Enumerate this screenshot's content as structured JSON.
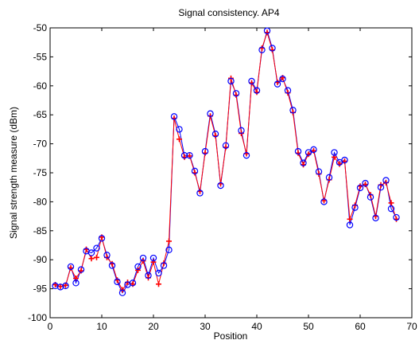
{
  "chart_data": {
    "type": "line",
    "title": "Signal consistency. AP4",
    "xlabel": "Position",
    "ylabel": "Signal strength measure (dBm)",
    "xlim": [
      0,
      70
    ],
    "ylim": [
      -100,
      -50
    ],
    "xticks": [
      0,
      10,
      20,
      30,
      40,
      50,
      60,
      70
    ],
    "yticks": [
      -100,
      -95,
      -90,
      -85,
      -80,
      -75,
      -70,
      -65,
      -60,
      -55,
      -50
    ],
    "grid": false,
    "colors": {
      "series_a": "#0000ff",
      "series_b": "#ff0000"
    },
    "series": [
      {
        "marker": "circle",
        "color": "#0000ff",
        "x": [
          1,
          2,
          3,
          4,
          5,
          6,
          7,
          8,
          9,
          10,
          11,
          12,
          13,
          14,
          15,
          16,
          17,
          18,
          19,
          20,
          21,
          22,
          23,
          24,
          25,
          26,
          27,
          28,
          29,
          30,
          31,
          32,
          33,
          34,
          35,
          36,
          37,
          38,
          39,
          40,
          41,
          42,
          43,
          44,
          45,
          46,
          47,
          48,
          49,
          50,
          51,
          52,
          53,
          54,
          55,
          56,
          57,
          58,
          59,
          60,
          61,
          62,
          63,
          64,
          65,
          66,
          67
        ],
        "y": [
          -94.5,
          -94.7,
          -94.5,
          -91.2,
          -94,
          -91.7,
          -88.5,
          -88.8,
          -88,
          -86.3,
          -89.2,
          -91,
          -93.8,
          -95.7,
          -94.3,
          -94,
          -91.2,
          -89.7,
          -92.7,
          -89.7,
          -92.3,
          -91,
          -88.3,
          -65.3,
          -67.5,
          -72,
          -72,
          -74.7,
          -78.5,
          -71.3,
          -64.8,
          -68.3,
          -77.2,
          -70.3,
          -59.2,
          -61.3,
          -67.7,
          -72,
          -59.2,
          -60.8,
          -53.8,
          -50.5,
          -53.5,
          -59.7,
          -58.8,
          -60.8,
          -64.2,
          -71.3,
          -73.3,
          -71.5,
          -71,
          -74.8,
          -80,
          -75.8,
          -71.5,
          -73.2,
          -72.8,
          -84,
          -81,
          -77.6,
          -76.8,
          -79.2,
          -82.8,
          -77.5,
          -76.3,
          -81.2,
          -82.7
        ]
      },
      {
        "marker": "plus",
        "color": "#ff0000",
        "x": [
          1,
          2,
          3,
          4,
          5,
          6,
          7,
          8,
          9,
          10,
          11,
          12,
          13,
          14,
          15,
          16,
          17,
          18,
          19,
          20,
          21,
          22,
          23,
          24,
          25,
          26,
          27,
          28,
          29,
          30,
          31,
          32,
          33,
          34,
          35,
          36,
          37,
          38,
          39,
          40,
          41,
          42,
          43,
          44,
          45,
          46,
          47,
          48,
          49,
          50,
          51,
          52,
          53,
          54,
          55,
          56,
          57,
          58,
          59,
          60,
          61,
          62,
          63,
          64,
          65,
          66,
          67
        ],
        "y": [
          -94.3,
          -94.6,
          -94.4,
          -91.4,
          -93.2,
          -91.9,
          -88.2,
          -89.8,
          -89.6,
          -86.1,
          -89.6,
          -90.7,
          -93.5,
          -95.2,
          -93.9,
          -94.2,
          -91.8,
          -90.2,
          -93.1,
          -90.4,
          -94.2,
          -90.6,
          -86.8,
          -65.6,
          -69.2,
          -72.3,
          -72.1,
          -75,
          -78.2,
          -71.6,
          -65.2,
          -68.6,
          -76.9,
          -70.6,
          -58.7,
          -61.6,
          -68.2,
          -71.7,
          -59.5,
          -61.1,
          -53.5,
          -50.8,
          -53.8,
          -59.4,
          -58.6,
          -61.2,
          -64.6,
          -71.6,
          -73.6,
          -71.8,
          -71.2,
          -75.2,
          -79.8,
          -76.2,
          -72.3,
          -73.5,
          -73,
          -83,
          -80.6,
          -77.3,
          -77,
          -78.8,
          -82.5,
          -77.1,
          -76.7,
          -80.2,
          -83
        ]
      }
    ]
  }
}
